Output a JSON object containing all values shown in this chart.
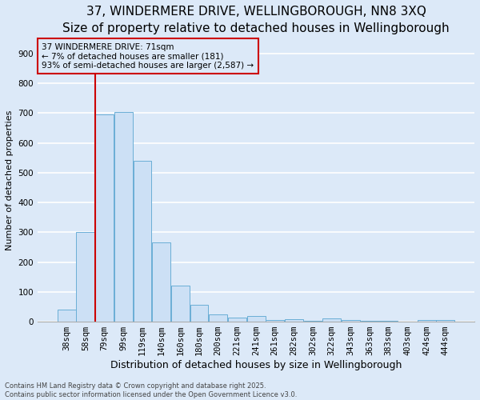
{
  "title": "37, WINDERMERE DRIVE, WELLINGBOROUGH, NN8 3XQ",
  "subtitle": "Size of property relative to detached houses in Wellingborough",
  "xlabel": "Distribution of detached houses by size in Wellingborough",
  "ylabel": "Number of detached properties",
  "categories": [
    "38sqm",
    "58sqm",
    "79sqm",
    "99sqm",
    "119sqm",
    "140sqm",
    "160sqm",
    "180sqm",
    "200sqm",
    "221sqm",
    "241sqm",
    "261sqm",
    "282sqm",
    "302sqm",
    "322sqm",
    "343sqm",
    "363sqm",
    "383sqm",
    "403sqm",
    "424sqm",
    "444sqm"
  ],
  "values": [
    40,
    300,
    695,
    705,
    540,
    265,
    122,
    57,
    25,
    15,
    18,
    7,
    8,
    3,
    10,
    5,
    3,
    3,
    0,
    5,
    5
  ],
  "bar_color": "#cce0f5",
  "bar_edge_color": "#6aaed6",
  "ylim": [
    0,
    950
  ],
  "yticks": [
    0,
    100,
    200,
    300,
    400,
    500,
    600,
    700,
    800,
    900
  ],
  "vline_color": "#cc0000",
  "vline_x": 1.0,
  "annotation_text": "37 WINDERMERE DRIVE: 71sqm\n← 7% of detached houses are smaller (181)\n93% of semi-detached houses are larger (2,587) →",
  "annotation_box_color": "#cc0000",
  "background_color": "#dce9f8",
  "grid_color": "#ffffff",
  "footer_text": "Contains HM Land Registry data © Crown copyright and database right 2025.\nContains public sector information licensed under the Open Government Licence v3.0.",
  "title_fontsize": 11,
  "subtitle_fontsize": 9,
  "xlabel_fontsize": 9,
  "ylabel_fontsize": 8,
  "tick_fontsize": 7.5,
  "annotation_fontsize": 7.5,
  "footer_fontsize": 6
}
